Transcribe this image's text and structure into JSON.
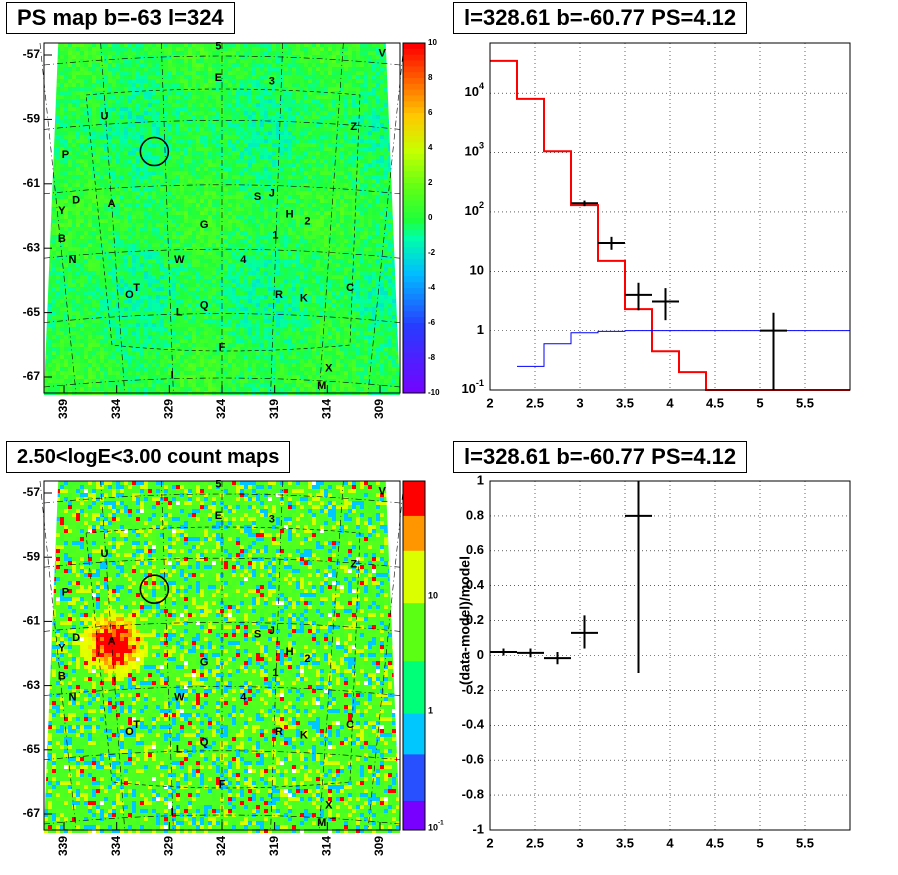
{
  "panels": {
    "top_left_title": "PS map b=-63 l=324",
    "top_right_title": "l=328.61 b=-60.77 PS=4.12",
    "bottom_left_title": "2.50<logE<3.00 count maps",
    "bottom_right_title": "l=328.61 b=-60.77 PS=4.12"
  },
  "chart_data": [
    {
      "type": "heatmap",
      "title": "PS map b=-63 l=324",
      "x_tick_labels": [
        "339",
        "334",
        "329",
        "324",
        "319",
        "314",
        "309"
      ],
      "y_tick_labels": [
        "-57",
        "-59",
        "-61",
        "-63",
        "-65",
        "-67"
      ],
      "colorbar": {
        "scale": "linear",
        "range": [
          -10,
          10
        ],
        "tick_labels": [
          "10",
          "8",
          "6",
          "4",
          "2",
          "0",
          "-2",
          "-4",
          "-6",
          "-8",
          "-10"
        ]
      },
      "source_labels": [
        "5",
        "V",
        "E",
        "3",
        "U",
        "Z",
        "P",
        "S",
        "J",
        "Y",
        "D",
        "A",
        "H",
        "2",
        "G",
        "B",
        "1",
        "N",
        "W",
        "4",
        "C",
        "T",
        "O",
        "R",
        "K",
        "L",
        "Q",
        "F",
        "X",
        "I",
        "M"
      ],
      "marker": "circle at l=328.61 b=-60.77",
      "colors": {
        "low": "#7b00ff",
        "zero": "#1fff3a",
        "high": "#ff0000"
      }
    },
    {
      "type": "line",
      "title": "l=328.61 b=-60.77 PS=4.12",
      "y_scale": "log",
      "xlim": [
        2,
        6
      ],
      "ylim": [
        0.1,
        70000
      ],
      "x_tick_labels": [
        "2",
        "2.5",
        "3",
        "3.5",
        "4",
        "4.5",
        "5",
        "5.5"
      ],
      "y_tick_labels": [
        "10^{-1}",
        "1",
        "10",
        "10^{2}",
        "10^{3}",
        "10^{4}"
      ],
      "grid": true,
      "series": [
        {
          "role": "model",
          "color": "#ff0000",
          "style": "step",
          "bins": [
            [
              2.0,
              2.3,
              35000
            ],
            [
              2.3,
              2.6,
              8000
            ],
            [
              2.6,
              2.9,
              1050
            ],
            [
              2.9,
              3.2,
              130
            ],
            [
              3.2,
              3.5,
              15
            ],
            [
              3.5,
              3.8,
              2.3
            ],
            [
              3.8,
              4.1,
              0.45
            ],
            [
              4.1,
              4.4,
              0.2
            ],
            [
              4.4,
              6.0,
              0.1
            ]
          ]
        },
        {
          "role": "background",
          "color": "#0000ff",
          "style": "step",
          "bins": [
            [
              2.3,
              2.6,
              0.25
            ],
            [
              2.6,
              2.9,
              0.6
            ],
            [
              2.9,
              3.2,
              0.92
            ],
            [
              3.2,
              3.5,
              0.97
            ],
            [
              3.5,
              6.0,
              1.0
            ]
          ]
        },
        {
          "role": "data",
          "color": "#000000",
          "style": "errorbar",
          "points": [
            {
              "x": 3.05,
              "y": 140,
              "xerr": 0.15,
              "ylo": 125,
              "yhi": 155
            },
            {
              "x": 3.35,
              "y": 30,
              "xerr": 0.15,
              "ylo": 23,
              "yhi": 38
            },
            {
              "x": 3.65,
              "y": 4,
              "xerr": 0.15,
              "ylo": 2.2,
              "yhi": 6.4
            },
            {
              "x": 3.95,
              "y": 3.1,
              "xerr": 0.15,
              "ylo": 1.5,
              "yhi": 5.2
            },
            {
              "x": 5.15,
              "y": 1.0,
              "xerr": 0.15,
              "ylo": 0.1,
              "yhi": 2.0
            }
          ]
        }
      ]
    },
    {
      "type": "heatmap",
      "title": "2.50<logE<3.00 count maps",
      "x_tick_labels": [
        "339",
        "334",
        "329",
        "324",
        "319",
        "314",
        "309"
      ],
      "y_tick_labels": [
        "-57",
        "-59",
        "-61",
        "-63",
        "-65",
        "-67"
      ],
      "colorbar": {
        "scale": "log",
        "tick_labels": [
          "10",
          "1",
          "10^{-1}"
        ]
      },
      "source_labels": [
        "5",
        "V",
        "E",
        "3",
        "U",
        "Z",
        "P",
        "S",
        "J",
        "Y",
        "D",
        "A",
        "H",
        "2",
        "G",
        "B",
        "1",
        "N",
        "W",
        "4",
        "C",
        "T",
        "O",
        "R",
        "K",
        "L",
        "Q",
        "F",
        "X",
        "I",
        "M"
      ],
      "bright_source": "A",
      "colors": {
        "low": "#7b00ff",
        "mid": "#1fff3a",
        "high": "#ff0000"
      }
    },
    {
      "type": "scatter",
      "title": "l=328.61 b=-60.77 PS=4.12",
      "ylabel": "(data-model)/model",
      "xlim": [
        2,
        6
      ],
      "ylim": [
        -1,
        1
      ],
      "x_tick_labels": [
        "2",
        "2.5",
        "3",
        "3.5",
        "4",
        "4.5",
        "5",
        "5.5"
      ],
      "y_tick_labels": [
        "1",
        "0.8",
        "0.6",
        "0.4",
        "0.2",
        "0",
        "-0.2",
        "-0.4",
        "-0.6",
        "-0.8",
        "-1"
      ],
      "grid": true,
      "points": [
        {
          "x": 2.15,
          "y": 0.02,
          "xerr": 0.15,
          "ylo": 0.0,
          "yhi": 0.04
        },
        {
          "x": 2.45,
          "y": 0.015,
          "xerr": 0.15,
          "ylo": -0.01,
          "yhi": 0.04
        },
        {
          "x": 2.75,
          "y": -0.015,
          "xerr": 0.15,
          "ylo": -0.05,
          "yhi": 0.02
        },
        {
          "x": 3.05,
          "y": 0.13,
          "xerr": 0.15,
          "ylo": 0.04,
          "yhi": 0.23
        },
        {
          "x": 3.65,
          "y": 0.8,
          "xerr": 0.15,
          "ylo": -0.1,
          "yhi": 1.0
        }
      ]
    }
  ]
}
